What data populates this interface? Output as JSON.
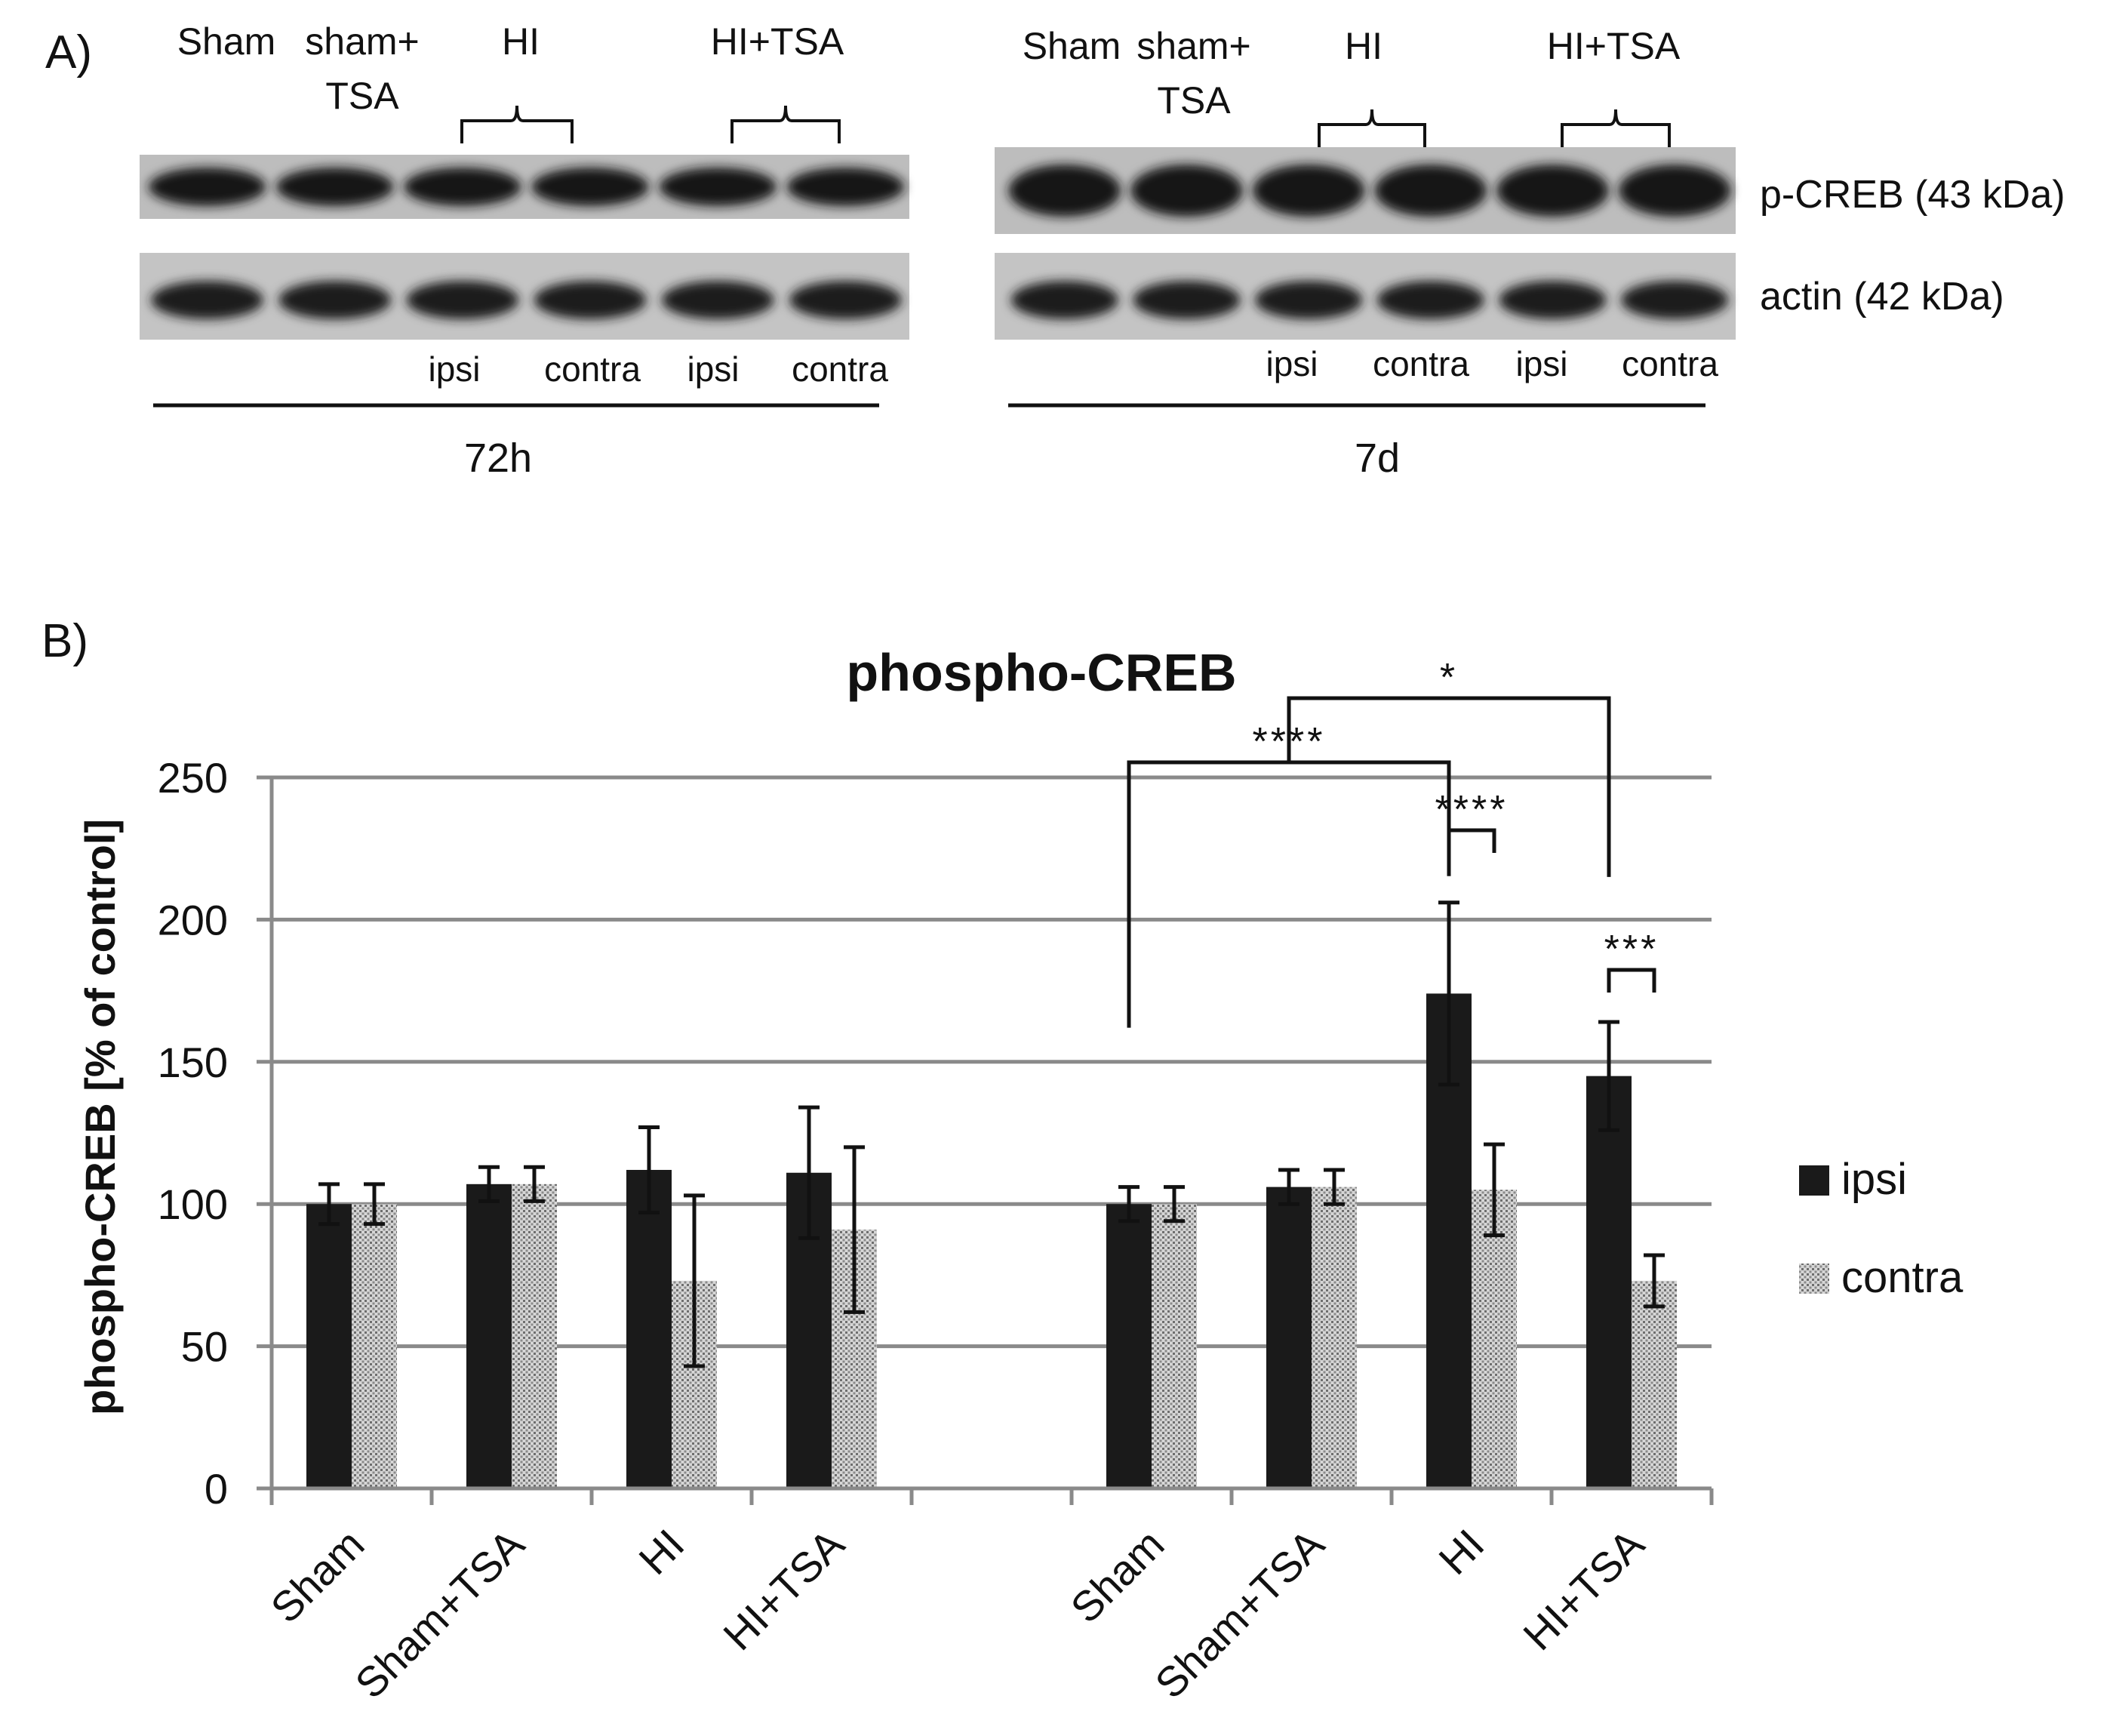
{
  "panel_a": {
    "label": "A)",
    "blot_72h": {
      "groups": [
        "Sham",
        "sham+\nTSA",
        "HI",
        "HI+TSA"
      ],
      "sides": [
        "ipsi",
        "contra",
        "ipsi",
        "contra"
      ],
      "timepoint": "72h"
    },
    "blot_7d": {
      "groups": [
        "Sham",
        "sham+\nTSA",
        "HI",
        "HI+TSA"
      ],
      "sides": [
        "ipsi",
        "contra",
        "ipsi",
        "contra"
      ],
      "timepoint": "7d"
    },
    "row_labels": [
      "p-CREB (43 kDa)",
      "actin (42 kDa)"
    ]
  },
  "panel_b": {
    "label": "B)"
  },
  "chart_data": {
    "type": "bar",
    "title": "phospho-CREB",
    "xlabel": "",
    "ylabel": "phospho-CREB [% of control]",
    "ylim": [
      0,
      250
    ],
    "yticks": [
      0,
      50,
      100,
      150,
      200,
      250
    ],
    "grid": true,
    "legend_position": "right",
    "categories": [
      "Sham",
      "Sham+TSA",
      "HI",
      "HI+TSA",
      "Sham",
      "Sham+TSA",
      "HI",
      "HI+TSA"
    ],
    "category_slots": [
      0,
      1,
      2,
      3,
      5,
      6,
      7,
      8
    ],
    "series": [
      {
        "name": "ipsi",
        "color": "#1a1a1a",
        "values": [
          100,
          107,
          112,
          111,
          100,
          106,
          174,
          145
        ],
        "errors": [
          7,
          6,
          15,
          23,
          6,
          6,
          32,
          19
        ]
      },
      {
        "name": "contra",
        "color": "#b8b8b8",
        "values": [
          100,
          107,
          73,
          91,
          100,
          106,
          105,
          73
        ],
        "errors": [
          7,
          6,
          30,
          29,
          6,
          6,
          16,
          9
        ]
      }
    ],
    "significance": [
      {
        "label": "****",
        "from_slot": 5,
        "from_series": "ipsi",
        "to_slot": 7,
        "to_series": "ipsi"
      },
      {
        "label": "*",
        "from_slot": 6,
        "from_series": "ipsi",
        "to_slot": 8,
        "to_series": "ipsi"
      },
      {
        "label": "****",
        "from_slot": 7,
        "from_series": "ipsi",
        "to_slot": 7,
        "to_series": "contra"
      },
      {
        "label": "***",
        "from_slot": 8,
        "from_series": "ipsi",
        "to_slot": 8,
        "to_series": "contra"
      }
    ]
  }
}
